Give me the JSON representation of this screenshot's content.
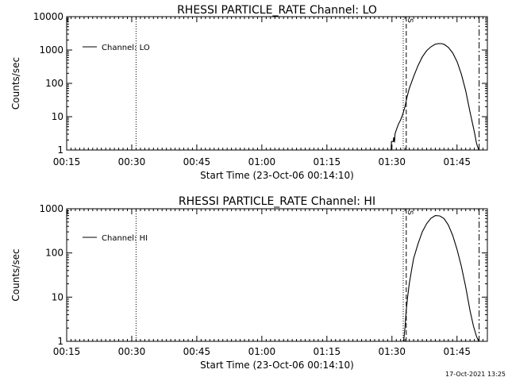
{
  "footer_timestamp": "17-Oct-2021 13:25",
  "chart_data": [
    {
      "type": "line",
      "title": "RHESSI PARTICLE_RATE Channel: LO",
      "xlabel": "Start Time (23-Oct-06 00:14:10)",
      "ylabel": "Counts/sec",
      "x_unit": "minutes of day (UT)",
      "xlim": [
        15,
        112
      ],
      "xticks": [
        15,
        30,
        45,
        60,
        75,
        90,
        105
      ],
      "xtick_labels": [
        "00:15",
        "00:30",
        "00:45",
        "01:00",
        "01:15",
        "01:30",
        "01:45"
      ],
      "yscale": "log",
      "ylim": [
        1,
        10000
      ],
      "yticks": [
        1,
        10,
        100,
        1000,
        10000
      ],
      "ytick_labels": [
        "1",
        "10",
        "100",
        "1000",
        "10000"
      ],
      "grid": false,
      "legend": {
        "position": "top-left",
        "entries": [
          "Channel: LO"
        ]
      },
      "markers": [
        {
          "x": 31.0,
          "style": "dotted",
          "label": ""
        },
        {
          "x": 92.6,
          "style": "dotted",
          "label": ""
        },
        {
          "x": 93.3,
          "style": "dashed",
          "label": "S"
        },
        {
          "x": 110.1,
          "style": "dashdot",
          "label": ""
        }
      ],
      "series": [
        {
          "name": "Channel: LO",
          "x": [
            89.8,
            89.9,
            90.3,
            90.4,
            90.6,
            90.7,
            91.0,
            91.5,
            92.0,
            92.5,
            93.0,
            93.5,
            94.0,
            95.0,
            96.0,
            97.0,
            98.0,
            99.0,
            100.0,
            100.8,
            101.5,
            102.0,
            103.0,
            104.0,
            105.0,
            106.0,
            107.0,
            108.0,
            109.0,
            109.5,
            110.0
          ],
          "values": [
            1,
            1.8,
            1.8,
            2.4,
            1.7,
            3,
            4,
            6,
            8,
            12,
            20,
            40,
            70,
            160,
            340,
            620,
            950,
            1250,
            1500,
            1560,
            1550,
            1480,
            1200,
            820,
            450,
            190,
            60,
            14,
            3.5,
            1.6,
            1
          ]
        }
      ]
    },
    {
      "type": "line",
      "title": "RHESSI PARTICLE_RATE Channel: HI",
      "xlabel": "Start Time (23-Oct-06 00:14:10)",
      "ylabel": "Counts/sec",
      "x_unit": "minutes of day (UT)",
      "xlim": [
        15,
        112
      ],
      "xticks": [
        15,
        30,
        45,
        60,
        75,
        90,
        105
      ],
      "xtick_labels": [
        "00:15",
        "00:30",
        "00:45",
        "01:00",
        "01:15",
        "01:30",
        "01:45"
      ],
      "yscale": "log",
      "ylim": [
        1,
        1000
      ],
      "yticks": [
        1,
        10,
        100,
        1000
      ],
      "ytick_labels": [
        "1",
        "10",
        "100",
        "1000"
      ],
      "grid": false,
      "legend": {
        "position": "top-left",
        "entries": [
          "Channel: HI"
        ]
      },
      "markers": [
        {
          "x": 31.0,
          "style": "dotted",
          "label": ""
        },
        {
          "x": 92.6,
          "style": "dotted",
          "label": ""
        },
        {
          "x": 93.3,
          "style": "dashed",
          "label": "S"
        },
        {
          "x": 110.1,
          "style": "dashdot",
          "label": ""
        }
      ],
      "series": [
        {
          "name": "Channel: HI",
          "x": [
            92.7,
            93.0,
            93.3,
            93.6,
            94.0,
            94.5,
            95.0,
            96.0,
            97.0,
            98.0,
            99.0,
            100.0,
            101.0,
            102.0,
            103.0,
            104.0,
            105.0,
            106.0,
            107.0,
            108.0,
            108.8,
            109.5,
            110.0
          ],
          "values": [
            1,
            2,
            5,
            10,
            20,
            40,
            75,
            160,
            300,
            460,
            610,
            700,
            690,
            600,
            430,
            250,
            120,
            50,
            17,
            5,
            2.2,
            1.3,
            1
          ]
        }
      ]
    }
  ]
}
